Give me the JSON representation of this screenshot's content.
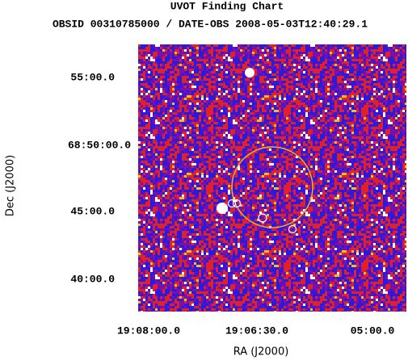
{
  "title": "UVOT Finding Chart",
  "subtitle": "OBSID 00310785000 / DATE-OBS 2008-05-03T12:40:29.1",
  "y_axis": {
    "label": "Dec (J2000)",
    "ticks": [
      "55:00.0",
      "68:50:00.0",
      "45:00.0",
      "40:00.0"
    ]
  },
  "x_axis": {
    "label": "RA (J2000)",
    "ticks": [
      "19:08:00.0",
      "19:06:30.0",
      "05:00.0"
    ]
  }
}
